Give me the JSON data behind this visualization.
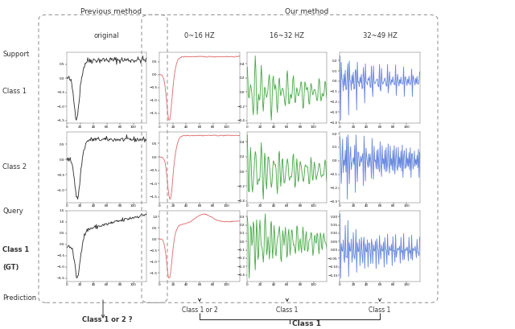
{
  "title_prev": "Previous method",
  "title_our": "Our method",
  "col_headers": [
    "original",
    "0~16 HZ",
    "16~32 HZ",
    "32~49 HZ"
  ],
  "prediction_label": "Prediction",
  "pred_result_prev": "Class 1 or 2 ?",
  "pred_result_our": "Class 1",
  "sub_pred_labels": [
    "Class 1 or 2",
    "Class 1",
    "Class 1"
  ],
  "colors": {
    "black": "#333333",
    "red": "#e07070",
    "green": "#4aaa4a",
    "blue": "#6688dd",
    "bg": "#ffffff",
    "box_border": "#999999"
  },
  "fig_width": 6.4,
  "fig_height": 4.09,
  "dpi": 100
}
